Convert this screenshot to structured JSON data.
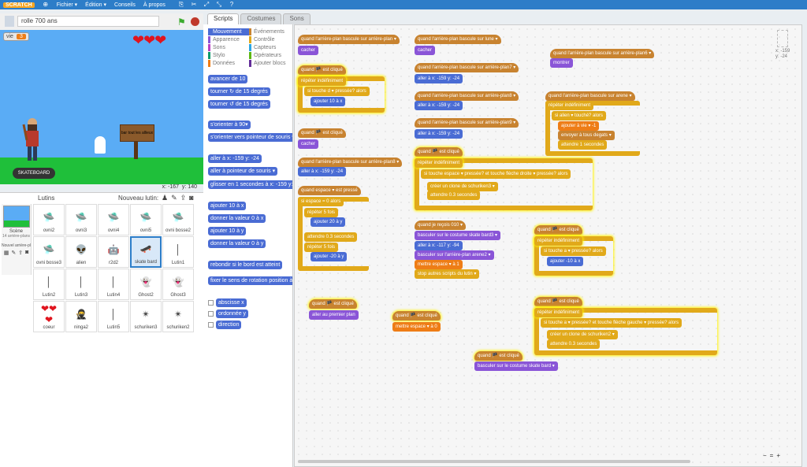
{
  "menubar": {
    "logo": "SCRATCH",
    "file": "Fichier ▾",
    "edit": "Édition ▾",
    "tips": "Conseils",
    "about": "À propos"
  },
  "stage": {
    "title": "rolle 700 ans",
    "variable_name": "vie",
    "variable_value": "3",
    "sign_text": "bar tout les allieux",
    "coords_x": "x: -167",
    "coords_y": "y: 140"
  },
  "sprites": {
    "title": "Lutins",
    "new_label": "Nouveau lutin:",
    "scene_label": "Scène",
    "scene_sub": "14 arrière-plans",
    "new_bg_label": "Nouvel arrière-pl",
    "items": [
      {
        "name": "ovni2"
      },
      {
        "name": "ovni3"
      },
      {
        "name": "ovni4"
      },
      {
        "name": "ovni5"
      },
      {
        "name": "ovni bosse2"
      },
      {
        "name": "ovni bosse3"
      },
      {
        "name": "alien"
      },
      {
        "name": "r2d2"
      },
      {
        "name": "skate bard"
      },
      {
        "name": "Lutin1"
      },
      {
        "name": "Lutin2"
      },
      {
        "name": "Lutin3"
      },
      {
        "name": "Lutin4"
      },
      {
        "name": "Ghost2"
      },
      {
        "name": "Ghost3"
      },
      {
        "name": "coeur"
      },
      {
        "name": "ninga2"
      },
      {
        "name": "Lutin5"
      },
      {
        "name": "schuriken3"
      },
      {
        "name": "schuriken2"
      }
    ]
  },
  "tabs": [
    "Scripts",
    "Costumes",
    "Sons"
  ],
  "categories": [
    {
      "label": "Mouvement",
      "color": "#4a6cd4"
    },
    {
      "label": "Événements",
      "color": "#c88330"
    },
    {
      "label": "Apparence",
      "color": "#8a55d7"
    },
    {
      "label": "Contrôle",
      "color": "#e1a91a"
    },
    {
      "label": "Sons",
      "color": "#bb42c3"
    },
    {
      "label": "Capteurs",
      "color": "#2ca5e2"
    },
    {
      "label": "Stylo",
      "color": "#0e9a6c"
    },
    {
      "label": "Opérateurs",
      "color": "#5cb712"
    },
    {
      "label": "Données",
      "color": "#ee7d16"
    },
    {
      "label": "Ajouter blocs",
      "color": "#632d99"
    }
  ],
  "palette": {
    "b1": "avancer de 10",
    "b2": "tourner ↻ de 15 degrés",
    "b3": "tourner ↺ de 15 degrés",
    "b4": "s'orienter à 90▾",
    "b5": "s'orienter vers pointeur de souris ▾",
    "b6": "aller à x: -159 y: -24",
    "b7": "aller à pointeur de souris ▾",
    "b8": "glisser en 1 secondes à x: -159 y:",
    "b9": "ajouter 10 à x",
    "b10": "donner la valeur 0 à x",
    "b11": "ajouter 10 à y",
    "b12": "donner la valeur 0 à y",
    "b13": "rebondir si le bord est atteint",
    "b14": "fixer le sens de rotation position à gauche",
    "cb1": "abscisse x",
    "cb2": "ordonnée y",
    "cb3": "direction"
  },
  "scripts": {
    "s1": "quand l'arrière-plan bascule sur arrière-plan ▾",
    "s1b": "cacher",
    "s2": "quand 🏴 est cliqué",
    "s2b": "répéter indéfiniment",
    "s2c": "si touche d ▾ pressée? alors",
    "s2d": "ajouter 10 à x",
    "s3": "quand 🏴 est cliqué",
    "s3b": "cacher",
    "s4": "quand l'arrière-plan bascule sur arrière-plan8 ▾",
    "s4b": "aller à x: -159 y: -24",
    "s5": "quand espace ▾ est pressé",
    "s5b": "si espace = 0 alors",
    "s5c": "répéter 5 fois",
    "s5d": "ajouter 20 à y",
    "s5e": "attendre 0.3 secondes",
    "s5f": "répéter 5 fois",
    "s5g": "ajouter -20 à y",
    "s6": "quand 🏴 est cliqué",
    "s6b": "aller au premier plan",
    "s7": "quand l'arrière-plan bascule sur lune ▾",
    "s7b": "cacher",
    "s8": "quand l'arrière-plan bascule sur arrière-plan7 ▾",
    "s8b": "aller à x: -159 y: -24",
    "s9": "quand l'arrière-plan bascule sur arrière-plan8 ▾",
    "s9b": "aller à x: -159 y: -24",
    "s10": "quand l'arrière-plan bascule sur arrière-plan9 ▾",
    "s10b": "aller à x: -159 y: -24",
    "s11": "quand 🏴 est cliqué",
    "s11b": "répéter indéfiniment",
    "s11c": "si touche espace ▾ pressée? et touche flèche droite ▾ pressée? alors",
    "s11d": "créer un clone de schuriken3 ▾",
    "s11e": "attendre 0.3 secondes",
    "s12": "quand je reçois 010 ▾",
    "s12b": "basculer sur le costume skate bard3 ▾",
    "s12c": "aller à x: -117 y: -94",
    "s12d": "basculer sur l'arrière-plan arene2 ▾",
    "s12e": "mettre espace ▾ à 1",
    "s12f": "stop autres scripts du lutin ▾",
    "s13": "quand 🏴 est cliqué",
    "s13b": "mettre espace ▾ à 0",
    "s14": "quand 🏴 est cliqué",
    "s14b": "basculer sur le costume skate bard ▾",
    "s15": "quand l'arrière-plan bascule sur arrière-plan6 ▾",
    "s15b": "montrer",
    "s16": "quand l'arrière-plan bascule sur arene ▾",
    "s16b": "répéter indéfiniment",
    "s16c": "si alien ▾ touché? alors",
    "s16d": "ajouter à vie ▾ -1",
    "s16e": "envoyer à tous degats ▾",
    "s16f": "attendre 1 secondes",
    "s17": "quand 🏴 est cliqué",
    "s17b": "répéter indéfiniment",
    "s17c": "si touche a ▾ pressée? alors",
    "s17d": "ajouter -10 à x",
    "s18": "quand 🏴 est cliqué",
    "s18b": "répéter indéfiniment",
    "s18c": "si touche a ▾ pressée? et touche flèche gauche ▾ pressée? alors",
    "s18d": "créer un clone de schuriken2 ▾",
    "s18e": "attendre 0.3 secondes",
    "sprite_x": "x: -159",
    "sprite_y": "y: -24"
  },
  "zoom": [
    "−",
    "=",
    "+"
  ]
}
